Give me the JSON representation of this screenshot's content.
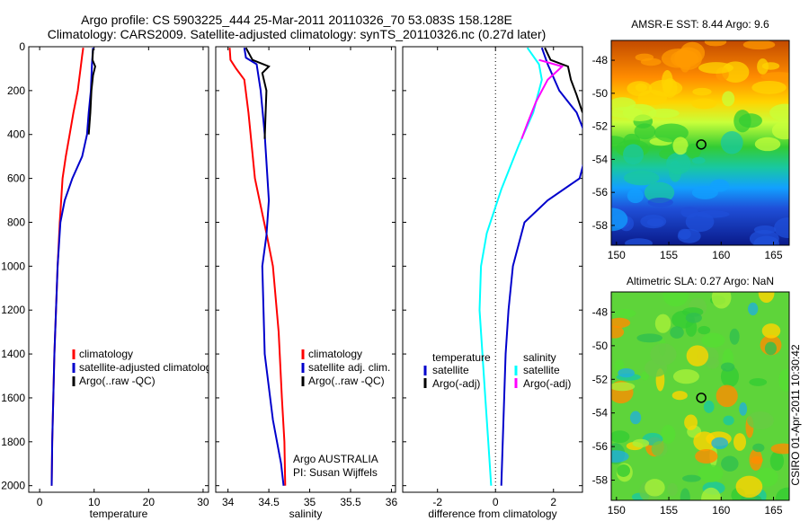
{
  "header": {
    "line1": "Argo profile: CS 5903225_444 25-Mar-2011 20110326_70 53.083S 158.128E",
    "line2": "Climatology: CARS2009. Satellite-adjusted climatology: synTS_20110326.nc (0.27d later)"
  },
  "colors": {
    "climatology": "#ff0000",
    "satellite": "#0000cc",
    "argo": "#000000",
    "sat_salinity": "#00ffff",
    "argo_salinity": "#ff00ff"
  },
  "chart_data": [
    {
      "type": "line",
      "id": "temperature",
      "xlabel": "temperature",
      "ylabel": "",
      "xlim": [
        -2,
        31
      ],
      "ylim": [
        2030,
        0
      ],
      "xticks": [
        0,
        10,
        20,
        30
      ],
      "yticks": [
        0,
        200,
        400,
        600,
        800,
        1000,
        1200,
        1400,
        1600,
        1800,
        2000
      ],
      "legend": {
        "placement": "lower-right",
        "entries": [
          "climatology",
          "satellite-adjusted climatology",
          "Argo(..raw -QC)"
        ]
      },
      "series": [
        {
          "name": "climatology",
          "color": "climatology",
          "points": [
            [
              8.0,
              5
            ],
            [
              7.8,
              40
            ],
            [
              7.5,
              100
            ],
            [
              7.0,
              200
            ],
            [
              6.2,
              300
            ],
            [
              5.5,
              400
            ],
            [
              4.8,
              500
            ],
            [
              4.2,
              600
            ],
            [
              3.7,
              800
            ],
            [
              3.3,
              1000
            ],
            [
              3.0,
              1200
            ],
            [
              2.7,
              1400
            ],
            [
              2.5,
              1600
            ],
            [
              2.3,
              1800
            ],
            [
              2.2,
              2000
            ]
          ]
        },
        {
          "name": "satellite-adjusted climatology",
          "color": "satellite",
          "points": [
            [
              9.8,
              5
            ],
            [
              9.6,
              80
            ],
            [
              9.4,
              200
            ],
            [
              9.0,
              300
            ],
            [
              8.7,
              400
            ],
            [
              7.8,
              500
            ],
            [
              6.0,
              600
            ],
            [
              4.6,
              700
            ],
            [
              3.8,
              800
            ],
            [
              3.3,
              1000
            ],
            [
              3.0,
              1200
            ],
            [
              2.7,
              1400
            ],
            [
              2.5,
              1600
            ],
            [
              2.3,
              1800
            ],
            [
              2.2,
              2000
            ]
          ]
        },
        {
          "name": "Argo(..raw -QC)",
          "color": "argo",
          "points": [
            [
              9.8,
              10
            ],
            [
              9.7,
              60
            ],
            [
              10.2,
              90
            ],
            [
              9.8,
              130
            ],
            [
              9.5,
              200
            ],
            [
              9.3,
              300
            ],
            [
              9.0,
              400
            ]
          ]
        }
      ]
    },
    {
      "type": "line",
      "id": "salinity",
      "xlabel": "salinity",
      "ylabel": "",
      "xlim": [
        33.85,
        36.05
      ],
      "ylim": [
        2030,
        0
      ],
      "xticks": [
        34,
        34.5,
        35,
        35.5,
        36
      ],
      "yticks": [
        0,
        200,
        400,
        600,
        800,
        1000,
        1200,
        1400,
        1600,
        1800,
        2000
      ],
      "legend": {
        "placement": "lower-right",
        "entries": [
          "climatology",
          "satellite adj. clim.",
          "Argo(..raw -QC)"
        ]
      },
      "annotation": [
        "Argo AUSTRALIA",
        "PI: Susan Wijffels"
      ],
      "series": [
        {
          "name": "climatology",
          "color": "climatology",
          "points": [
            [
              34.02,
              5
            ],
            [
              34.03,
              60
            ],
            [
              34.1,
              100
            ],
            [
              34.2,
              150
            ],
            [
              34.25,
              300
            ],
            [
              34.33,
              600
            ],
            [
              34.47,
              850
            ],
            [
              34.55,
              1000
            ],
            [
              34.62,
              1300
            ],
            [
              34.66,
              1600
            ],
            [
              34.69,
              1800
            ],
            [
              34.7,
              2000
            ]
          ]
        },
        {
          "name": "satellite adj. clim.",
          "color": "satellite",
          "points": [
            [
              34.2,
              5
            ],
            [
              34.22,
              50
            ],
            [
              34.35,
              80
            ],
            [
              34.4,
              200
            ],
            [
              34.45,
              400
            ],
            [
              34.5,
              700
            ],
            [
              34.47,
              860
            ],
            [
              34.42,
              1000
            ],
            [
              34.45,
              1400
            ],
            [
              34.55,
              1700
            ],
            [
              34.65,
              1900
            ],
            [
              34.68,
              2000
            ]
          ]
        },
        {
          "name": "Argo(..raw -QC)",
          "color": "argo",
          "points": [
            [
              34.22,
              5
            ],
            [
              34.3,
              60
            ],
            [
              34.5,
              90
            ],
            [
              34.42,
              120
            ],
            [
              34.47,
              200
            ],
            [
              34.46,
              300
            ],
            [
              34.45,
              420
            ]
          ]
        }
      ]
    },
    {
      "type": "line",
      "id": "difference",
      "xlabel": "difference from climatology",
      "ylabel": "",
      "xlim": [
        -3.2,
        3.0
      ],
      "ylim": [
        2030,
        0
      ],
      "xticks": [
        -2,
        0,
        2
      ],
      "yticks": [
        0,
        200,
        400,
        600,
        800,
        1000,
        1200,
        1400,
        1600,
        1800,
        2000
      ],
      "zero_line": 0,
      "legend": {
        "placement": "lower",
        "entries": [
          "temperature",
          "satellite",
          "Argo(-adj)",
          "salinity",
          "satellite",
          "Argo(-adj)"
        ]
      },
      "series": [
        {
          "name": "temperature satellite",
          "color": "satellite",
          "points": [
            [
              1.6,
              5
            ],
            [
              1.8,
              80
            ],
            [
              2.2,
              200
            ],
            [
              2.8,
              300
            ],
            [
              3.1,
              400
            ],
            [
              3.1,
              500
            ],
            [
              2.9,
              600
            ],
            [
              1.8,
              700
            ],
            [
              1.0,
              800
            ],
            [
              0.6,
              1000
            ],
            [
              0.45,
              1200
            ],
            [
              0.35,
              1400
            ],
            [
              0.3,
              1600
            ],
            [
              0.25,
              1800
            ],
            [
              0.2,
              2000
            ]
          ]
        },
        {
          "name": "temperature Argo(-adj)",
          "color": "argo",
          "points": [
            [
              1.7,
              5
            ],
            [
              1.9,
              60
            ],
            [
              2.5,
              90
            ],
            [
              2.6,
              150
            ],
            [
              2.8,
              220
            ],
            [
              3.0,
              300
            ]
          ]
        },
        {
          "name": "salinity satellite",
          "color": "sat_salinity",
          "points": [
            [
              1.1,
              5
            ],
            [
              1.5,
              80
            ],
            [
              1.6,
              150
            ],
            [
              1.3,
              300
            ],
            [
              0.8,
              450
            ],
            [
              0.2,
              650
            ],
            [
              -0.3,
              850
            ],
            [
              -0.5,
              1000
            ],
            [
              -0.55,
              1200
            ],
            [
              -0.45,
              1400
            ],
            [
              -0.35,
              1600
            ],
            [
              -0.25,
              1800
            ],
            [
              -0.15,
              2000
            ]
          ]
        },
        {
          "name": "salinity Argo(-adj)",
          "color": "argo_salinity",
          "points": [
            [
              1.5,
              60
            ],
            [
              2.3,
              90
            ],
            [
              1.8,
              150
            ],
            [
              1.4,
              250
            ],
            [
              1.1,
              350
            ],
            [
              0.9,
              420
            ]
          ]
        }
      ]
    }
  ],
  "maps": [
    {
      "title": "AMSR-E SST: 8.44 Argo: 9.6",
      "xticks": [
        150,
        155,
        160,
        165
      ],
      "yticks": [
        -48,
        -50,
        -52,
        -54,
        -56,
        -58
      ],
      "xlim": [
        149.5,
        166.5
      ],
      "ylim": [
        -59.2,
        -46.8
      ],
      "marker": [
        158.1,
        -53.1
      ]
    },
    {
      "title": "Altimetric SLA: 0.27 Argo: NaN",
      "xticks": [
        150,
        155,
        160,
        165
      ],
      "yticks": [
        -48,
        -50,
        -52,
        -54,
        -56,
        -58
      ],
      "xlim": [
        149.5,
        166.5
      ],
      "ylim": [
        -59.2,
        -46.8
      ],
      "marker": [
        158.1,
        -53.1
      ]
    }
  ],
  "side_text": "CSIRO 01-Apr-2011 10:30:42"
}
